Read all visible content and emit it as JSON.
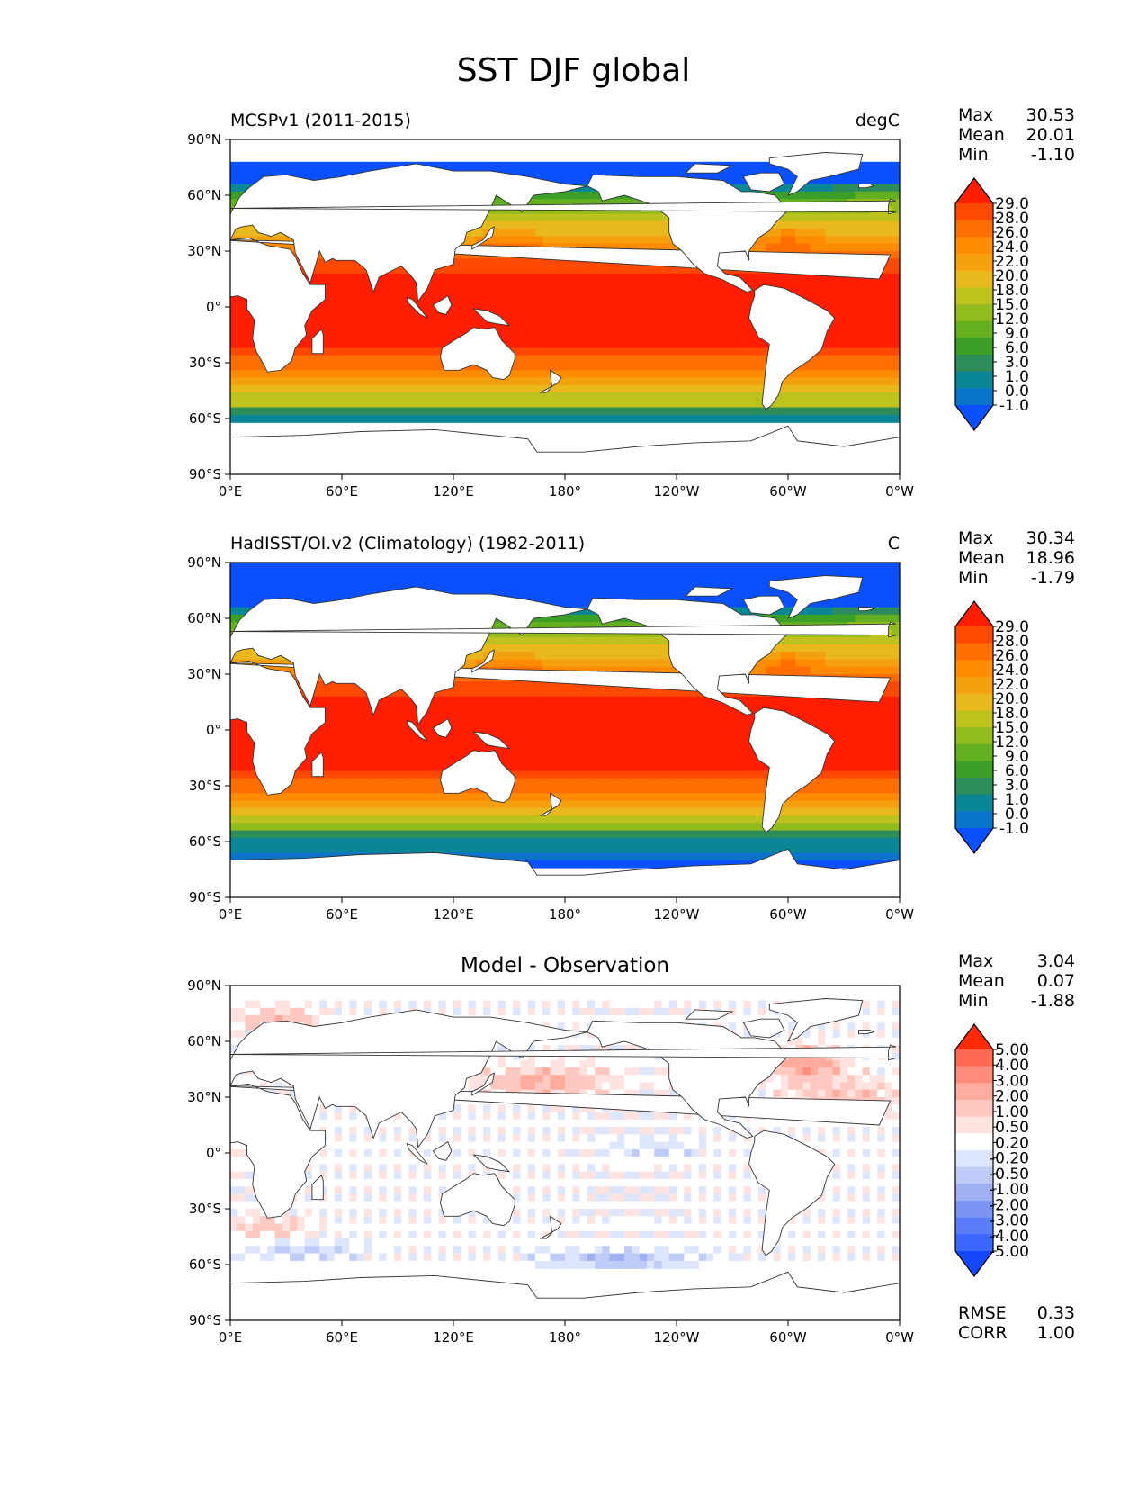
{
  "figure": {
    "title": "SST DJF global"
  },
  "colors": {
    "sst": [
      "#0a50ff",
      "#0a74c8",
      "#0a8796",
      "#2c8c5a",
      "#3c9f28",
      "#64b020",
      "#92bc1e",
      "#bdc21d",
      "#e8b81c",
      "#f6a00f",
      "#ff8c00",
      "#ff6e00",
      "#ff4800",
      "#ff1e00"
    ],
    "diff": [
      "#1547ff",
      "#3b67ff",
      "#5a7dfa",
      "#7c95f5",
      "#9fb0f5",
      "#bfccf8",
      "#dde6fc",
      "#ffffff",
      "#ffe3e0",
      "#ffc8c0",
      "#ffab9e",
      "#ff8c7b",
      "#ff6a54",
      "#ff2a08"
    ],
    "land": "#ffffff",
    "coast": "#333333"
  },
  "axes": {
    "x_ticks": [
      "0°E",
      "60°E",
      "120°E",
      "180°",
      "120°W",
      "60°W",
      "0°W"
    ],
    "y_ticks": [
      "90°N",
      "60°N",
      "30°N",
      "0°",
      "30°S",
      "60°S",
      "90°S"
    ]
  },
  "panels": [
    {
      "left_title": "MCSPv1 (2011-2015)",
      "right_title": "degC",
      "stats": [
        {
          "label": "Max",
          "value": "30.53"
        },
        {
          "label": "Mean",
          "value": "20.01"
        },
        {
          "label": "Min",
          "value": "-1.10"
        }
      ],
      "colorbar_labels": [
        "29.0",
        "28.0",
        "26.0",
        "24.0",
        "22.0",
        "20.0",
        "18.0",
        "15.0",
        "12.0",
        "9.0",
        "6.0",
        "3.0",
        "1.0",
        "0.0",
        "-1.0"
      ]
    },
    {
      "left_title": "HadISST/OI.v2 (Climatology) (1982-2011)",
      "right_title": "C",
      "stats": [
        {
          "label": "Max",
          "value": "30.34"
        },
        {
          "label": "Mean",
          "value": "18.96"
        },
        {
          "label": "Min",
          "value": "-1.79"
        }
      ],
      "colorbar_labels": [
        "29.0",
        "28.0",
        "26.0",
        "24.0",
        "22.0",
        "20.0",
        "18.0",
        "15.0",
        "12.0",
        "9.0",
        "6.0",
        "3.0",
        "1.0",
        "0.0",
        "-1.0"
      ]
    },
    {
      "center_title": "Model - Observation",
      "stats": [
        {
          "label": "Max",
          "value": "3.04"
        },
        {
          "label": "Mean",
          "value": "0.07"
        },
        {
          "label": "Min",
          "value": "-1.88"
        }
      ],
      "extra_stats": [
        {
          "label": "RMSE",
          "value": "0.33"
        },
        {
          "label": "CORR",
          "value": "1.00"
        }
      ],
      "colorbar_labels": [
        "5.00",
        "4.00",
        "3.00",
        "2.00",
        "1.00",
        "0.50",
        "0.20",
        "-0.20",
        "-0.50",
        "-1.00",
        "-2.00",
        "-3.00",
        "-4.00",
        "-5.00"
      ]
    }
  ],
  "chart_data": [
    {
      "type": "heatmap",
      "title": "MCSPv1 (2011-2015)",
      "variable": "SST DJF",
      "units": "degC",
      "xlim": [
        0,
        360
      ],
      "ylim": [
        -90,
        90
      ],
      "levels": [
        -1.0,
        0.0,
        1.0,
        3.0,
        6.0,
        9.0,
        12.0,
        15.0,
        18.0,
        20.0,
        22.0,
        24.0,
        26.0,
        28.0,
        29.0
      ],
      "max": 30.53,
      "mean": 20.01,
      "min": -1.1
    },
    {
      "type": "heatmap",
      "title": "HadISST/OI.v2 (Climatology) (1982-2011)",
      "variable": "SST DJF",
      "units": "C",
      "xlim": [
        0,
        360
      ],
      "ylim": [
        -90,
        90
      ],
      "levels": [
        -1.0,
        0.0,
        1.0,
        3.0,
        6.0,
        9.0,
        12.0,
        15.0,
        18.0,
        20.0,
        22.0,
        24.0,
        26.0,
        28.0,
        29.0
      ],
      "max": 30.34,
      "mean": 18.96,
      "min": -1.79
    },
    {
      "type": "heatmap",
      "title": "Model - Observation",
      "xlim": [
        0,
        360
      ],
      "ylim": [
        -90,
        90
      ],
      "levels": [
        -5.0,
        -4.0,
        -3.0,
        -2.0,
        -1.0,
        -0.5,
        -0.2,
        0.2,
        0.5,
        1.0,
        2.0,
        3.0,
        4.0,
        5.0
      ],
      "max": 3.04,
      "mean": 0.07,
      "min": -1.88,
      "rmse": 0.33,
      "corr": 1.0
    }
  ]
}
